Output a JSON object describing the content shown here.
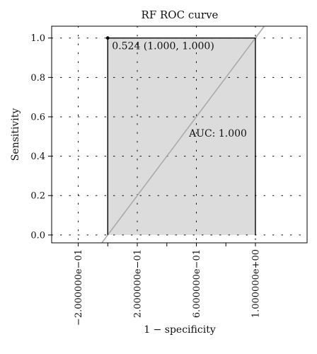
{
  "chart_data": {
    "type": "line",
    "title": "RF ROC curve",
    "xlabel": "1 − specificity",
    "ylabel": "Sensitivity",
    "xlim": [
      -0.38,
      1.35
    ],
    "ylim": [
      -0.04,
      1.06
    ],
    "x_ticks": [
      {
        "value": -0.2,
        "label": "−2.000000e−01"
      },
      {
        "value": 0.2,
        "label": "2.000000e−01"
      },
      {
        "value": 0.6,
        "label": "6.000000e−01"
      },
      {
        "value": 1.0,
        "label": "1.000000e+00"
      }
    ],
    "y_ticks": [
      {
        "value": 0.0,
        "label": "0.0"
      },
      {
        "value": 0.2,
        "label": "0.2"
      },
      {
        "value": 0.4,
        "label": "0.4"
      },
      {
        "value": 0.6,
        "label": "0.6"
      },
      {
        "value": 0.8,
        "label": "0.8"
      },
      {
        "value": 1.0,
        "label": "1.0"
      }
    ],
    "grid": "dotted",
    "series": [
      {
        "x": [
          0.0,
          0.0,
          1.0
        ],
        "y": [
          0.0,
          1.0,
          1.0
        ],
        "color": "#000000"
      }
    ],
    "auc_polygon": {
      "x": [
        0.0,
        0.0,
        1.0,
        1.0
      ],
      "y": [
        0.0,
        1.0,
        1.0,
        0.0
      ],
      "fill": "#dcdcdc"
    },
    "diagonal": {
      "color": "#a8a8a8"
    },
    "threshold_point": {
      "x": 0.0,
      "y": 1.0,
      "label": "0.524 (1.000, 1.000)"
    },
    "auc_label": {
      "text": "AUC: 1.000",
      "x": 0.55,
      "y": 0.5
    }
  }
}
